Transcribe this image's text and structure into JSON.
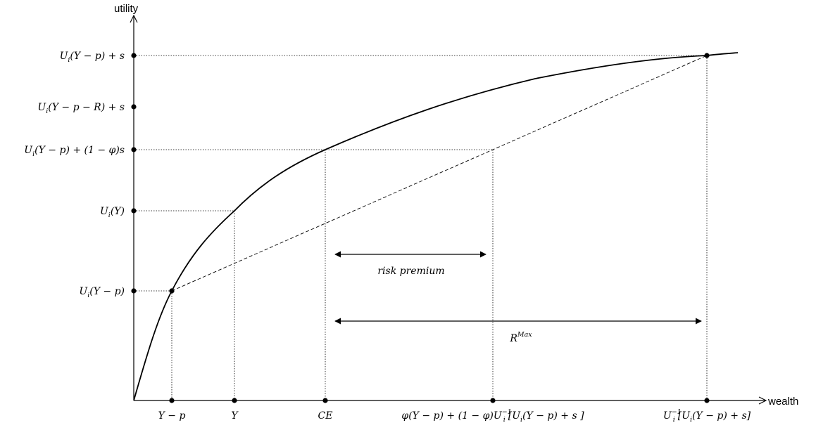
{
  "axes": {
    "y_label": "utility",
    "x_label": "wealth"
  },
  "y_ticks": [
    {
      "id": "us",
      "base": "U",
      "sub": "i",
      "rest": "(Y − p) + s"
    },
    {
      "id": "upr",
      "base": "U",
      "sub": "i",
      "rest": "(Y − p − R) + s"
    },
    {
      "id": "ups",
      "base": "U",
      "sub": "i",
      "rest": "(Y − p) + (1 − φ)s"
    },
    {
      "id": "uy",
      "base": "U",
      "sub": "i",
      "rest": "(Y)"
    },
    {
      "id": "up",
      "base": "U",
      "sub": "i",
      "rest": "(Y − p)"
    }
  ],
  "x_ticks": {
    "yp": "Y − p",
    "y": "Y",
    "ce": "CE",
    "mix": {
      "pre": "φ(Y − p) + (1 − φ)U",
      "sub": "i",
      "sup": "−1",
      "post": "[U",
      "sub2": "i",
      "post2": "(Y − p) + s ]"
    },
    "inv": {
      "pre": "U",
      "sub": "i",
      "sup": "−1",
      "post": "[U",
      "sub2": "i",
      "post2": "(Y − p) + s]"
    }
  },
  "annotations": {
    "risk_premium": "risk premium",
    "rmax": {
      "base": "R",
      "sup": "Max"
    }
  },
  "colors": {
    "ink": "#000000"
  }
}
